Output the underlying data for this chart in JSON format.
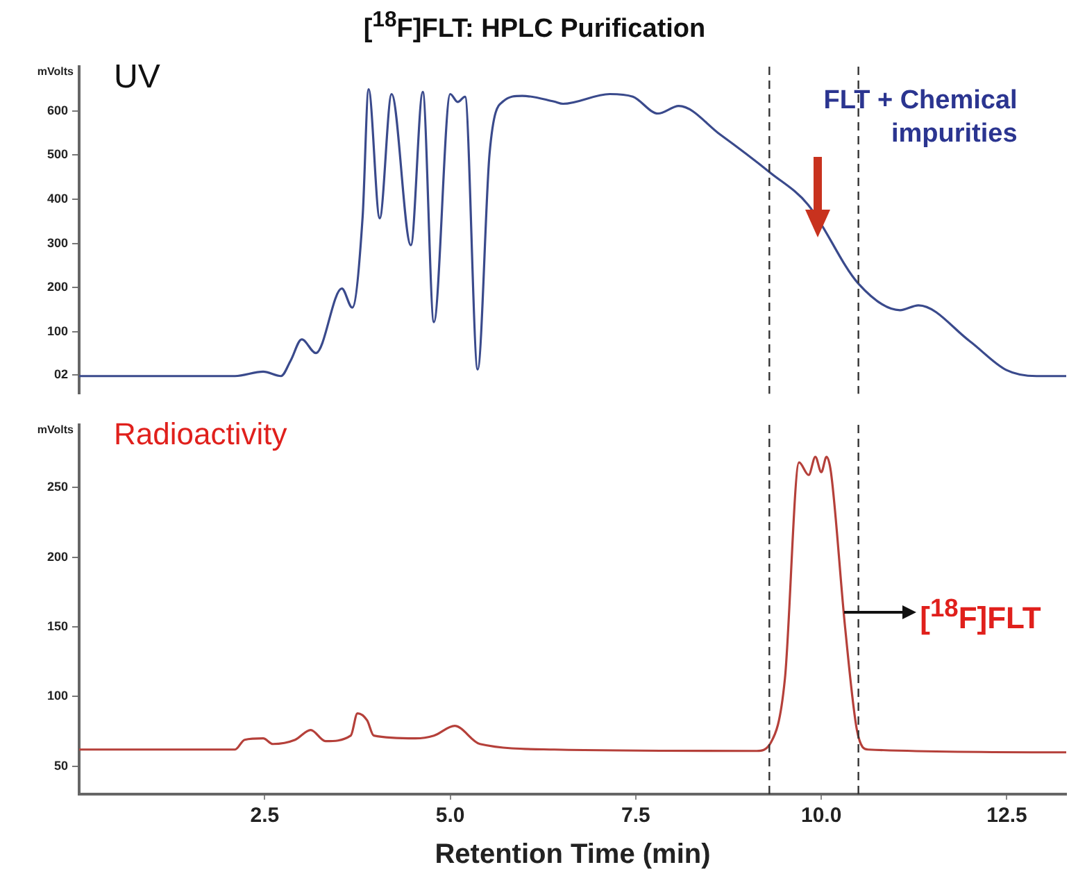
{
  "chart_data": [
    {
      "type": "line",
      "title": "[$^{18}$F]FLT: HPLC Purification",
      "ylabel": "mVolts",
      "annotations": [
        "UV",
        "FLT + Chemical impurities"
      ],
      "x": [
        0,
        2.1,
        2.48,
        2.72,
        2.85,
        3.0,
        3.19,
        3.54,
        3.68,
        3.82,
        3.9,
        4.05,
        4.21,
        4.47,
        4.63,
        4.78,
        5.0,
        5.1,
        5.2,
        5.37,
        5.53,
        5.71,
        5.97,
        6.4,
        6.52,
        7.15,
        7.46,
        7.8,
        8.08,
        8.64,
        9.32,
        9.82,
        10.5,
        11.06,
        11.31,
        12.0,
        12.49,
        12.9,
        13.3
      ],
      "series": [
        {
          "color": "#3a4a8c",
          "values": [
            0,
            0,
            10,
            0,
            35,
            83,
            52,
            198,
            155,
            361,
            649,
            357,
            638,
            296,
            643,
            122,
            638,
            620,
            632,
            15,
            503,
            621,
            634,
            621,
            616,
            638,
            632,
            594,
            611,
            546,
            459,
            388,
            209,
            149,
            160,
            79,
            14,
            0,
            0
          ]
        }
      ],
      "xlim": [
        0,
        13.3
      ],
      "ylim": [
        -40,
        700
      ],
      "yticks": [
        {
          "value": 2,
          "label": "02"
        },
        100,
        200,
        300,
        400,
        500,
        600
      ],
      "tick_labels": "y",
      "grid": false,
      "legend": false,
      "marker": "none",
      "line_style": "solid",
      "ref_lines": [
        {
          "axis": "x",
          "value": 9.3,
          "color": "#333333",
          "line_style": "dashed"
        },
        {
          "axis": "x",
          "value": 10.5,
          "color": "#333333",
          "line_style": "dashed"
        }
      ]
    },
    {
      "type": "line",
      "xlabel": "Retention Time (min)",
      "ylabel": "mVolts",
      "annotations": [
        "Radioactivity",
        {
          "text": "[$^{18}$F]FLT",
          "x": 10.3,
          "y": 161
        }
      ],
      "x": [
        0,
        2.1,
        2.23,
        2.48,
        2.61,
        2.91,
        3.12,
        3.32,
        3.66,
        3.75,
        3.88,
        3.97,
        4.53,
        4.78,
        5.06,
        5.4,
        6.4,
        9.13,
        9.32,
        9.51,
        9.7,
        9.83,
        9.92,
        10.0,
        10.07,
        10.13,
        10.32,
        10.48,
        10.63,
        13.3
      ],
      "series": [
        {
          "color": "#b5403a",
          "values": [
            62,
            62,
            69,
            70,
            66,
            69,
            76,
            68,
            72,
            88,
            83,
            72,
            70,
            72,
            79,
            66,
            62,
            61,
            67,
            113,
            268,
            259,
            272,
            261,
            272,
            261,
            150,
            76,
            62,
            60
          ]
        }
      ],
      "xlim": [
        0,
        13.3
      ],
      "ylim": [
        30,
        295
      ],
      "xticks": [
        {
          "value": 2.5,
          "label": "2.5"
        },
        {
          "value": 5,
          "label": "5.0"
        },
        {
          "value": 7.5,
          "label": "7.5"
        },
        {
          "value": 10,
          "label": "10.0"
        },
        {
          "value": 12.5,
          "label": "12.5"
        }
      ],
      "yticks": [
        50,
        100,
        150,
        200,
        250
      ],
      "grid": false,
      "legend": false,
      "marker": "none",
      "line_style": "solid",
      "ref_lines": [
        {
          "axis": "x",
          "value": 9.3,
          "color": "#333333",
          "line_style": "dashed"
        },
        {
          "axis": "x",
          "value": 10.5,
          "color": "#333333",
          "line_style": "dashed"
        }
      ]
    }
  ]
}
